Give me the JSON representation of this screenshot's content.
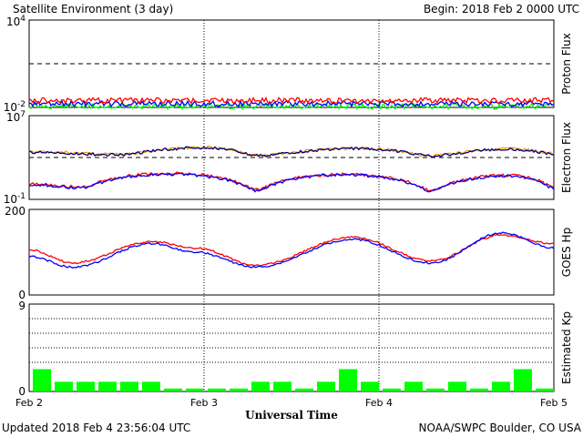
{
  "header": {
    "title": "Satellite Environment (3 day)",
    "begin": "Begin:  2018 Feb 2 0000 UTC"
  },
  "footer": {
    "updated": "Updated 2018 Feb  4 23:56:04 UTC",
    "credit": "NOAA/SWPC Boulder, CO USA",
    "xlabel": "Universal Time"
  },
  "colors": {
    "red": "#ff0000",
    "blue": "#0000ff",
    "green": "#00ff00",
    "orange": "#ff9900",
    "navy": "#000080"
  },
  "chart_data": [
    {
      "type": "line",
      "ylabel": "Proton Flux",
      "yscale": "log",
      "ylim": [
        0.01,
        10000
      ],
      "ytick_labels": [
        "10^4",
        "10^-2"
      ],
      "threshold": 10,
      "series": [
        {
          "color": "red",
          "level": 0.03
        },
        {
          "color": "blue",
          "level": 0.018
        },
        {
          "color": "green",
          "level": 0.012
        }
      ]
    },
    {
      "type": "line",
      "ylabel": "Electron Flux",
      "yscale": "log",
      "ylim": [
        0.1,
        10000000
      ],
      "ytick_labels": [
        "10^7",
        "10^-1"
      ],
      "threshold": 1000,
      "series": [
        {
          "color": "orange",
          "x": [
            0,
            0.5,
            1.0,
            1.3,
            1.9,
            2.3,
            2.75,
            3.0
          ],
          "y": [
            3500,
            2000,
            9000,
            1600,
            7500,
            1500,
            6500,
            2500
          ]
        },
        {
          "color": "navy",
          "x": [
            0,
            0.5,
            1.0,
            1.3,
            1.9,
            2.3,
            2.75,
            3.0
          ],
          "y": [
            3200,
            1800,
            8500,
            1500,
            7000,
            1400,
            6000,
            2300
          ]
        },
        {
          "color": "red",
          "x": [
            0,
            0.3,
            0.8,
            1.3,
            1.8,
            2.3,
            2.75,
            3.0
          ],
          "y": [
            3,
            1.5,
            30,
            0.8,
            25,
            0.7,
            20,
            1.2
          ]
        },
        {
          "color": "blue",
          "x": [
            0,
            0.3,
            0.8,
            1.3,
            1.8,
            2.3,
            2.75,
            3.0
          ],
          "y": [
            2.5,
            1.2,
            25,
            0.7,
            22,
            0.6,
            17,
            1.0
          ]
        }
      ]
    },
    {
      "type": "line",
      "ylabel": "GOES Hp",
      "ylim": [
        0,
        200
      ],
      "ytick_labels": [
        "200",
        "0"
      ],
      "series": [
        {
          "color": "red",
          "x": [
            0,
            0.25,
            0.7,
            0.95,
            1.3,
            1.85,
            2.3,
            2.7,
            3.0
          ],
          "y": [
            105,
            75,
            125,
            110,
            70,
            135,
            80,
            140,
            120
          ]
        },
        {
          "color": "blue",
          "x": [
            0,
            0.25,
            0.7,
            0.95,
            1.3,
            1.85,
            2.3,
            2.7,
            3.0
          ],
          "y": [
            90,
            65,
            120,
            100,
            65,
            130,
            75,
            145,
            110
          ]
        }
      ]
    },
    {
      "type": "bar",
      "ylabel": "Estimated Kp",
      "ylim": [
        0,
        9
      ],
      "ytick_labels": [
        "9",
        "0"
      ],
      "values": [
        2.3,
        1.0,
        1.0,
        1.0,
        1.0,
        1.0,
        0.3,
        0.3,
        0.3,
        0.3,
        1.0,
        1.0,
        0.3,
        1.0,
        2.3,
        1.0,
        0.3,
        1.0,
        0.3,
        1.0,
        0.3,
        1.0,
        2.3,
        0.3
      ],
      "colors": [
        "green"
      ]
    }
  ],
  "xaxis": {
    "tick_labels": [
      "Feb 2",
      "Feb 3",
      "Feb 4",
      "Feb 5"
    ]
  }
}
